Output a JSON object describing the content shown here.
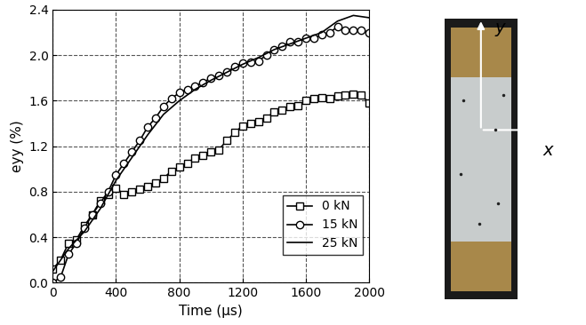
{
  "chart_data": {
    "type": "line",
    "x_label": "Time (μs)",
    "y_label": "eyy (%)",
    "xlim": [
      0,
      2000
    ],
    "xticks": [
      0,
      400,
      800,
      1200,
      1600,
      2000
    ],
    "ylim": [
      0,
      2.4
    ],
    "yticks": [
      {
        "value": 0.0,
        "label": "0.0"
      },
      {
        "value": 0.4,
        "label": "0.4"
      },
      {
        "value": 0.8,
        "label": "0.8"
      },
      {
        "value": 1.2,
        "label": "1.2"
      },
      {
        "value": 1.6,
        "label": "1.6"
      },
      {
        "value": 2.0,
        "label": "2.0"
      },
      {
        "value": 2.4,
        "label": "2.4"
      }
    ],
    "grid": true,
    "legend": "lower right",
    "annotations": [
      "y",
      "x"
    ],
    "series": [
      {
        "name": "0 kN",
        "color": "#000000",
        "marker": "square",
        "line_style": "solid",
        "x": [
          0,
          50,
          100,
          150,
          200,
          250,
          300,
          350,
          400,
          450,
          500,
          550,
          600,
          650,
          700,
          750,
          800,
          850,
          900,
          950,
          1000,
          1050,
          1100,
          1150,
          1200,
          1250,
          1300,
          1350,
          1400,
          1450,
          1500,
          1550,
          1600,
          1650,
          1700,
          1750,
          1800,
          1850,
          1900,
          1950,
          2000
        ],
        "values": [
          0.12,
          0.2,
          0.35,
          0.38,
          0.5,
          0.6,
          0.72,
          0.78,
          0.83,
          0.78,
          0.8,
          0.82,
          0.85,
          0.88,
          0.92,
          0.98,
          1.02,
          1.05,
          1.1,
          1.12,
          1.15,
          1.17,
          1.25,
          1.32,
          1.38,
          1.4,
          1.42,
          1.45,
          1.5,
          1.52,
          1.55,
          1.56,
          1.6,
          1.62,
          1.63,
          1.62,
          1.64,
          1.65,
          1.66,
          1.65,
          1.58
        ]
      },
      {
        "name": "15 kN",
        "color": "#000000",
        "marker": "circle",
        "line_style": "solid",
        "x": [
          0,
          50,
          100,
          150,
          200,
          250,
          300,
          350,
          400,
          450,
          500,
          550,
          600,
          650,
          700,
          750,
          800,
          850,
          900,
          950,
          1000,
          1050,
          1100,
          1150,
          1200,
          1250,
          1300,
          1350,
          1400,
          1450,
          1500,
          1550,
          1600,
          1650,
          1700,
          1750,
          1800,
          1850,
          1900,
          1950,
          2000
        ],
        "values": [
          0.0,
          0.05,
          0.25,
          0.35,
          0.48,
          0.6,
          0.7,
          0.8,
          0.95,
          1.05,
          1.15,
          1.25,
          1.37,
          1.45,
          1.55,
          1.62,
          1.67,
          1.7,
          1.73,
          1.76,
          1.8,
          1.82,
          1.85,
          1.9,
          1.93,
          1.94,
          1.95,
          2.0,
          2.05,
          2.08,
          2.12,
          2.12,
          2.15,
          2.15,
          2.18,
          2.2,
          2.25,
          2.22,
          2.22,
          2.22,
          2.2
        ]
      },
      {
        "name": "25 kN",
        "color": "#000000",
        "marker": "none",
        "line_style": "solid",
        "x": [
          0,
          50,
          100,
          200,
          300,
          400,
          500,
          600,
          700,
          800,
          900,
          1000,
          1100,
          1200,
          1300,
          1400,
          1500,
          1600,
          1700,
          1800,
          1900,
          2000
        ],
        "values": [
          0.1,
          0.2,
          0.3,
          0.45,
          0.65,
          0.9,
          1.1,
          1.3,
          1.48,
          1.6,
          1.7,
          1.78,
          1.85,
          1.92,
          1.98,
          2.05,
          2.1,
          2.15,
          2.2,
          2.3,
          2.35,
          2.33
        ]
      }
    ]
  }
}
